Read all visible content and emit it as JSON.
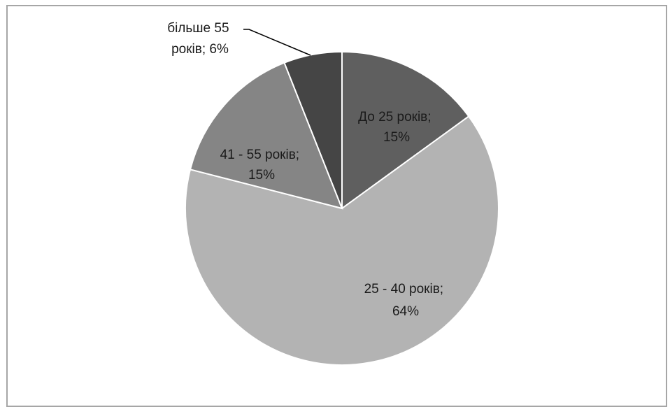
{
  "chart_data": {
    "type": "pie",
    "title": "",
    "slices": [
      {
        "label_line1": "До 25 років;",
        "label_line2": "15%",
        "value": 15,
        "color": "#5f5f5f"
      },
      {
        "label_line1": "25 - 40 років;",
        "label_line2": "64%",
        "value": 64,
        "color": "#b3b3b3"
      },
      {
        "label_line1": "41 - 55 років;",
        "label_line2": "15%",
        "value": 15,
        "color": "#858585"
      },
      {
        "label_line1": "більше 55",
        "label_line2": "років; 6%",
        "value": 6,
        "color": "#454545"
      }
    ],
    "start": "12 o'clock",
    "direction": "clockwise",
    "slice_border": "#ffffff",
    "legend": "none"
  }
}
